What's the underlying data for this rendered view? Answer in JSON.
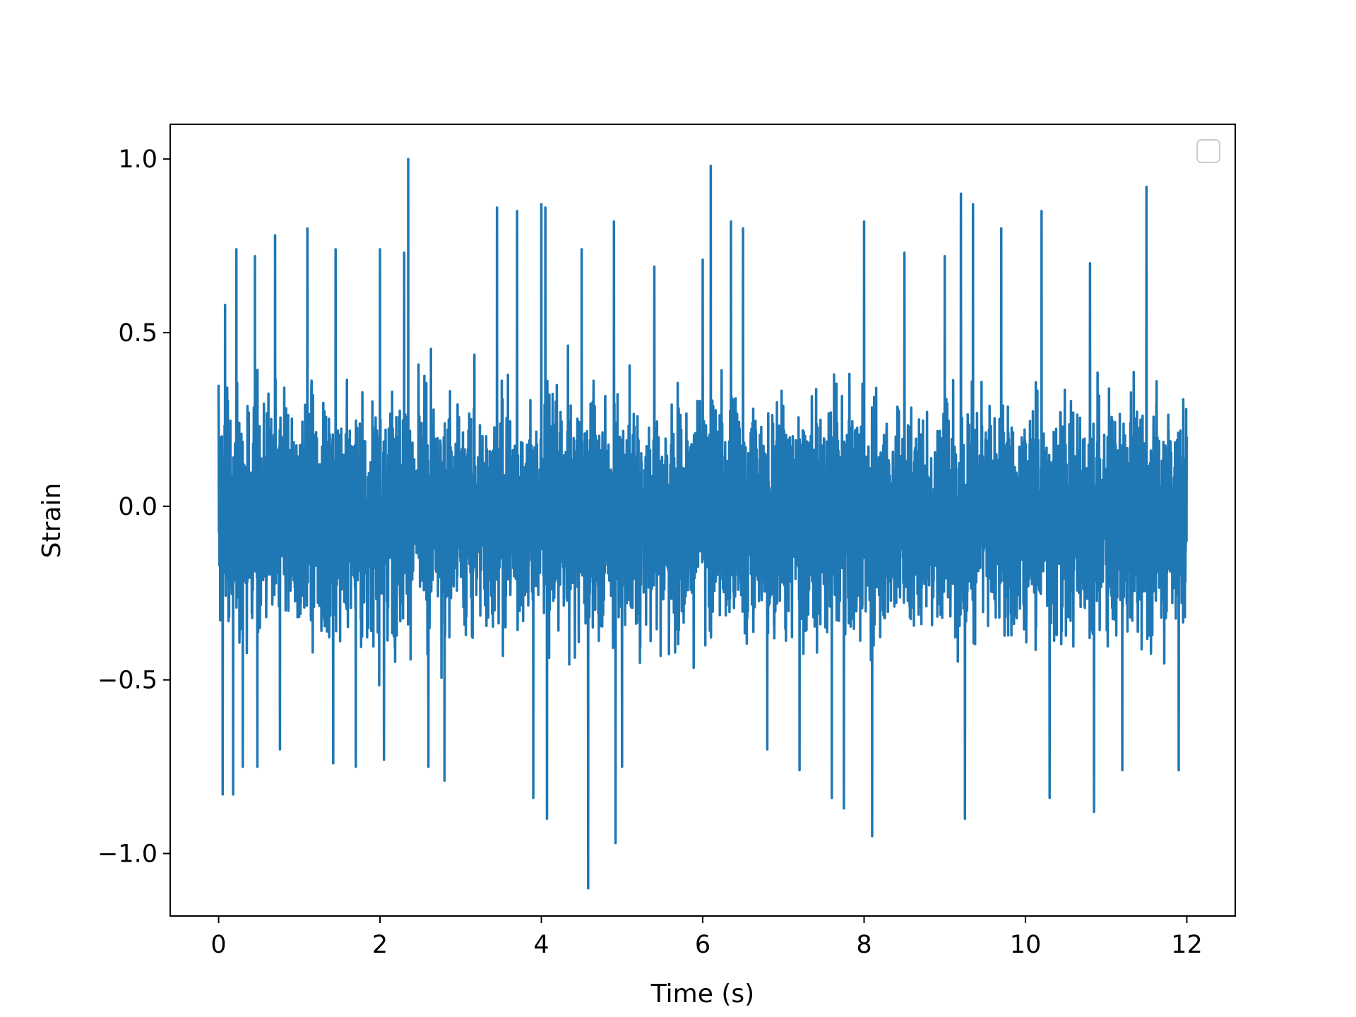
{
  "chart_data": {
    "type": "line",
    "title": "",
    "xlabel": "Time (s)",
    "ylabel": "Strain",
    "xlim": [
      -0.6,
      12.6
    ],
    "ylim": [
      -1.18,
      1.1
    ],
    "xticks": [
      0,
      2,
      4,
      6,
      8,
      10,
      12
    ],
    "xtick_labels": [
      "0",
      "2",
      "4",
      "6",
      "8",
      "10",
      "12"
    ],
    "yticks": [
      1.0,
      0.5,
      0.0,
      -0.5,
      -1.0
    ],
    "ytick_labels": [
      "1.0",
      "0.5",
      "0.0",
      "−0.5",
      "−1.0"
    ],
    "grid": false,
    "legend": {
      "position": "upper right",
      "entries": []
    },
    "series": [
      {
        "color": "#1f77b4",
        "description": "dense noise signal sampled from 0 s to 12 s, bulk within about ±0.5, extremes near 1.0 and -1.1",
        "x_range": [
          0,
          12
        ],
        "points": [
          [
            0.0,
            0.35
          ],
          [
            0.05,
            -0.83
          ],
          [
            0.08,
            0.58
          ],
          [
            0.18,
            -0.83
          ],
          [
            0.22,
            0.74
          ],
          [
            0.3,
            -0.75
          ],
          [
            0.45,
            0.72
          ],
          [
            0.48,
            -0.75
          ],
          [
            0.7,
            0.78
          ],
          [
            0.76,
            -0.7
          ],
          [
            1.1,
            0.8
          ],
          [
            1.45,
            0.74
          ],
          [
            1.42,
            -0.74
          ],
          [
            1.7,
            -0.75
          ],
          [
            2.0,
            0.74
          ],
          [
            2.05,
            -0.73
          ],
          [
            2.3,
            0.73
          ],
          [
            2.35,
            1.0
          ],
          [
            2.6,
            -0.75
          ],
          [
            2.8,
            -0.79
          ],
          [
            3.45,
            0.86
          ],
          [
            3.7,
            0.85
          ],
          [
            3.9,
            -0.84
          ],
          [
            4.0,
            0.87
          ],
          [
            4.05,
            0.86
          ],
          [
            4.07,
            -0.9
          ],
          [
            4.5,
            0.74
          ],
          [
            4.58,
            -1.1
          ],
          [
            4.9,
            0.82
          ],
          [
            4.92,
            -0.97
          ],
          [
            5.0,
            -0.75
          ],
          [
            5.4,
            0.69
          ],
          [
            6.0,
            0.71
          ],
          [
            6.1,
            0.98
          ],
          [
            6.35,
            0.82
          ],
          [
            6.5,
            0.8
          ],
          [
            6.8,
            -0.7
          ],
          [
            7.2,
            -0.76
          ],
          [
            7.6,
            -0.84
          ],
          [
            7.75,
            -0.87
          ],
          [
            8.0,
            0.82
          ],
          [
            8.1,
            -0.95
          ],
          [
            8.5,
            0.73
          ],
          [
            9.0,
            0.72
          ],
          [
            9.2,
            0.9
          ],
          [
            9.25,
            -0.9
          ],
          [
            9.35,
            0.87
          ],
          [
            9.7,
            0.8
          ],
          [
            10.2,
            0.85
          ],
          [
            10.3,
            -0.84
          ],
          [
            10.8,
            0.7
          ],
          [
            10.85,
            -0.88
          ],
          [
            11.2,
            -0.76
          ],
          [
            11.5,
            0.92
          ],
          [
            11.9,
            -0.76
          ],
          [
            12.0,
            0.2
          ]
        ]
      }
    ]
  }
}
